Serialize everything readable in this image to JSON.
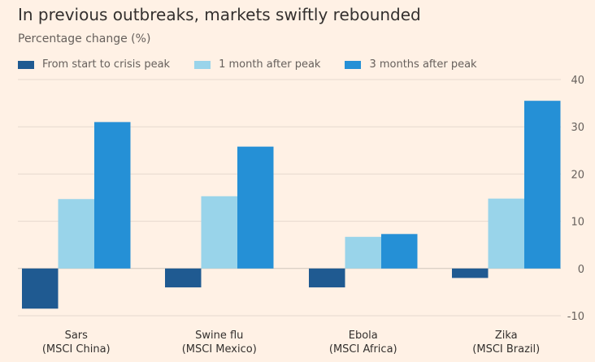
{
  "chart_data": {
    "type": "bar",
    "title": "In previous outbreaks, markets swiftly rebounded",
    "subtitle": "Percentage change (%)",
    "categories": [
      [
        "Sars",
        "(MSCI China)"
      ],
      [
        "Swine flu",
        "(MSCI Mexico)"
      ],
      [
        "Ebola",
        "(MSCI Africa)"
      ],
      [
        "Zika",
        "(MSCI Brazil)"
      ]
    ],
    "series": [
      {
        "name": "From start to crisis peak",
        "color": "#1f5a91",
        "values": [
          -8.5,
          -4,
          -4,
          -2
        ]
      },
      {
        "name": "1 month after peak",
        "color": "#99d4ea",
        "values": [
          14.7,
          15.3,
          6.7,
          14.8
        ]
      },
      {
        "name": "3 months after peak",
        "color": "#2590d6",
        "values": [
          31,
          25.8,
          7.3,
          35.5
        ]
      }
    ],
    "yticks": [
      40,
      30,
      20,
      10,
      0,
      -10
    ],
    "ylim": [
      -10,
      40
    ],
    "grid": true,
    "yaxis_position": "right",
    "legend_position": "top"
  }
}
